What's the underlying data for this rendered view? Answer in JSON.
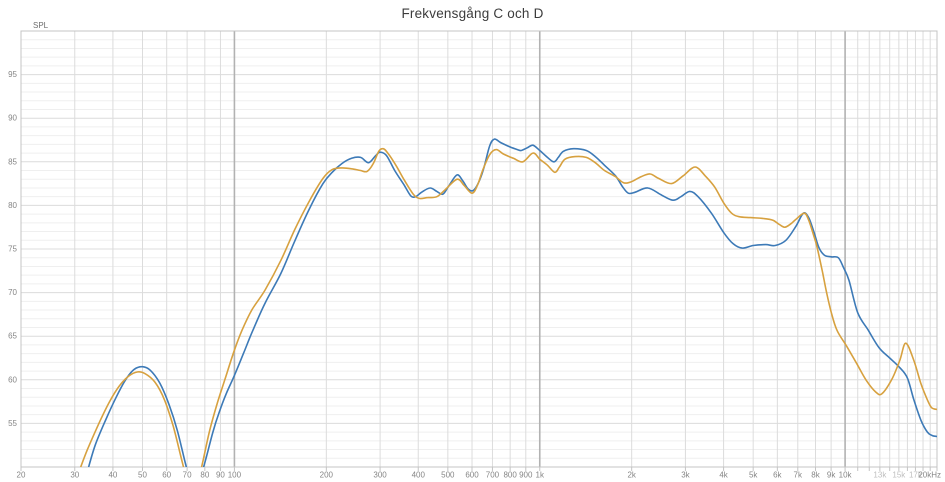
{
  "header": {
    "title": "Frekvensgång C och D"
  },
  "axes": {
    "spl_label": "SPL",
    "y_tick_labels": [
      "55",
      "60",
      "65",
      "70",
      "75",
      "80",
      "85",
      "90",
      "95"
    ],
    "x_ticks": [
      {
        "f": 20,
        "label": "20"
      },
      {
        "f": 30,
        "label": "30"
      },
      {
        "f": 40,
        "label": "40"
      },
      {
        "f": 50,
        "label": "50"
      },
      {
        "f": 60,
        "label": "60"
      },
      {
        "f": 70,
        "label": "70"
      },
      {
        "f": 80,
        "label": "80"
      },
      {
        "f": 90,
        "label": "90"
      },
      {
        "f": 100,
        "label": "100"
      },
      {
        "f": 200,
        "label": "200"
      },
      {
        "f": 300,
        "label": "300"
      },
      {
        "f": 400,
        "label": "400"
      },
      {
        "f": 500,
        "label": "500"
      },
      {
        "f": 600,
        "label": "600"
      },
      {
        "f": 700,
        "label": "700"
      },
      {
        "f": 800,
        "label": "800"
      },
      {
        "f": 900,
        "label": "900"
      },
      {
        "f": 1000,
        "label": "1k"
      },
      {
        "f": 2000,
        "label": "2k"
      },
      {
        "f": 3000,
        "label": "3k"
      },
      {
        "f": 4000,
        "label": "4k"
      },
      {
        "f": 5000,
        "label": "5k"
      },
      {
        "f": 6000,
        "label": "6k"
      },
      {
        "f": 7000,
        "label": "7k"
      },
      {
        "f": 8000,
        "label": "8k"
      },
      {
        "f": 9000,
        "label": "9k"
      },
      {
        "f": 10000,
        "label": "10k"
      },
      {
        "f": 13000,
        "label": "13k",
        "muted": true
      },
      {
        "f": 15000,
        "label": "15k",
        "muted": true
      },
      {
        "f": 17000,
        "label": "17k",
        "muted": true
      },
      {
        "f": 20000,
        "label": "20kHz",
        "anchor": "end"
      }
    ]
  },
  "style": {
    "grid_minor": "#efefef",
    "grid_major": "#dcdcdc",
    "grid_decade": "#b2b2b2",
    "border": "#c4c4c4",
    "tick": "#c4c4c4",
    "label_color": "#858585",
    "muted_label_color": "#bfbfbf",
    "spl_color": "#6e6e6e",
    "title_color": "#3c3c3c"
  },
  "chart_data": {
    "type": "line",
    "title": "Frekvensgång C och D",
    "x_scale": "log",
    "x_unit": "Hz",
    "x_range": [
      20,
      20000
    ],
    "ylabel": "SPL",
    "y_range": [
      50,
      100
    ],
    "y_major_step": 5,
    "y_minor_step": 1,
    "grid": true,
    "legend": "none",
    "series": [
      {
        "name": "C",
        "color": "#3d7ab7",
        "points": [
          [
            33,
            49.5
          ],
          [
            35,
            52.5
          ],
          [
            38,
            55.5
          ],
          [
            41,
            58
          ],
          [
            44,
            60
          ],
          [
            47,
            61.2
          ],
          [
            50,
            61.5
          ],
          [
            53,
            61.1
          ],
          [
            57,
            59.6
          ],
          [
            61,
            57.2
          ],
          [
            65,
            54.2
          ],
          [
            69,
            50.5
          ],
          [
            72,
            48.2
          ],
          [
            75,
            47.8
          ],
          [
            78,
            49.2
          ],
          [
            81,
            51.2
          ],
          [
            85,
            54
          ],
          [
            89,
            56.2
          ],
          [
            94,
            58.4
          ],
          [
            100,
            60.5
          ],
          [
            107,
            63
          ],
          [
            115,
            65.7
          ],
          [
            126,
            68.8
          ],
          [
            142,
            72.2
          ],
          [
            158,
            76
          ],
          [
            176,
            79.6
          ],
          [
            195,
            82.5
          ],
          [
            209,
            83.8
          ],
          [
            225,
            84.8
          ],
          [
            242,
            85.4
          ],
          [
            259,
            85.5
          ],
          [
            275,
            84.9
          ],
          [
            290,
            85.7
          ],
          [
            300,
            86.1
          ],
          [
            315,
            85.7
          ],
          [
            335,
            84
          ],
          [
            360,
            82.3
          ],
          [
            378,
            81.1
          ],
          [
            392,
            81
          ],
          [
            410,
            81.5
          ],
          [
            437,
            82
          ],
          [
            460,
            81.6
          ],
          [
            482,
            81.3
          ],
          [
            505,
            82.3
          ],
          [
            536,
            83.5
          ],
          [
            560,
            82.8
          ],
          [
            582,
            81.9
          ],
          [
            605,
            81.7
          ],
          [
            630,
            82.6
          ],
          [
            655,
            84.2
          ],
          [
            685,
            86.8
          ],
          [
            710,
            87.6
          ],
          [
            745,
            87.2
          ],
          [
            800,
            86.7
          ],
          [
            845,
            86.4
          ],
          [
            870,
            86.3
          ],
          [
            910,
            86.6
          ],
          [
            950,
            86.9
          ],
          [
            1000,
            86.3
          ],
          [
            1045,
            85.7
          ],
          [
            1110,
            85
          ],
          [
            1150,
            85.5
          ],
          [
            1195,
            86.2
          ],
          [
            1290,
            86.5
          ],
          [
            1420,
            86.3
          ],
          [
            1520,
            85.6
          ],
          [
            1630,
            84.6
          ],
          [
            1770,
            83.4
          ],
          [
            1870,
            82.1
          ],
          [
            1950,
            81.4
          ],
          [
            2050,
            81.5
          ],
          [
            2260,
            82
          ],
          [
            2500,
            81.2
          ],
          [
            2730,
            80.6
          ],
          [
            2900,
            81
          ],
          [
            3100,
            81.6
          ],
          [
            3300,
            81
          ],
          [
            3650,
            79.1
          ],
          [
            4000,
            76.9
          ],
          [
            4300,
            75.6
          ],
          [
            4600,
            75.1
          ],
          [
            5000,
            75.4
          ],
          [
            5500,
            75.5
          ],
          [
            5900,
            75.4
          ],
          [
            6400,
            76
          ],
          [
            6900,
            77.6
          ],
          [
            7300,
            79.1
          ],
          [
            7600,
            78.6
          ],
          [
            7900,
            77
          ],
          [
            8200,
            75.2
          ],
          [
            8550,
            74.3
          ],
          [
            9000,
            74.1
          ],
          [
            9500,
            74
          ],
          [
            9900,
            72.8
          ],
          [
            10300,
            71.4
          ],
          [
            11000,
            67.7
          ],
          [
            11900,
            65.7
          ],
          [
            12900,
            63.7
          ],
          [
            14000,
            62.5
          ],
          [
            15100,
            61.4
          ],
          [
            16000,
            60.2
          ],
          [
            16800,
            57.7
          ],
          [
            17700,
            55.4
          ],
          [
            18600,
            54
          ],
          [
            19300,
            53.6
          ],
          [
            20000,
            53.5
          ]
        ]
      },
      {
        "name": "D",
        "color": "#d7a13f",
        "points": [
          [
            31,
            49.5
          ],
          [
            33,
            52
          ],
          [
            36,
            55
          ],
          [
            39,
            57.5
          ],
          [
            42,
            59.3
          ],
          [
            45,
            60.4
          ],
          [
            48,
            60.9
          ],
          [
            51,
            60.7
          ],
          [
            55,
            59.7
          ],
          [
            59,
            57.7
          ],
          [
            63,
            54.7
          ],
          [
            67,
            51
          ],
          [
            70,
            48.5
          ],
          [
            73,
            47
          ],
          [
            76,
            48.3
          ],
          [
            79,
            50.8
          ],
          [
            83,
            54.2
          ],
          [
            88,
            57.4
          ],
          [
            93,
            60
          ],
          [
            100,
            63.4
          ],
          [
            106,
            65.7
          ],
          [
            114,
            68
          ],
          [
            126,
            70.3
          ],
          [
            142,
            73.7
          ],
          [
            158,
            77.3
          ],
          [
            176,
            80.5
          ],
          [
            195,
            83.1
          ],
          [
            209,
            84.1
          ],
          [
            225,
            84.3
          ],
          [
            242,
            84.2
          ],
          [
            259,
            84
          ],
          [
            272,
            83.9
          ],
          [
            285,
            84.8
          ],
          [
            297,
            86.2
          ],
          [
            307,
            86.5
          ],
          [
            318,
            86
          ],
          [
            338,
            84.6
          ],
          [
            360,
            82.9
          ],
          [
            385,
            81.3
          ],
          [
            403,
            80.8
          ],
          [
            430,
            80.9
          ],
          [
            460,
            81
          ],
          [
            490,
            81.8
          ],
          [
            536,
            83
          ],
          [
            565,
            82.3
          ],
          [
            600,
            81.4
          ],
          [
            625,
            82.3
          ],
          [
            650,
            84
          ],
          [
            685,
            85.8
          ],
          [
            720,
            86.4
          ],
          [
            760,
            85.9
          ],
          [
            820,
            85.4
          ],
          [
            880,
            85
          ],
          [
            950,
            86
          ],
          [
            1000,
            85.3
          ],
          [
            1060,
            84.6
          ],
          [
            1120,
            83.8
          ],
          [
            1160,
            84.4
          ],
          [
            1210,
            85.3
          ],
          [
            1305,
            85.6
          ],
          [
            1420,
            85.5
          ],
          [
            1520,
            84.9
          ],
          [
            1630,
            84
          ],
          [
            1770,
            83.3
          ],
          [
            1880,
            82.6
          ],
          [
            1990,
            82.7
          ],
          [
            2150,
            83.3
          ],
          [
            2300,
            83.6
          ],
          [
            2450,
            83.1
          ],
          [
            2700,
            82.5
          ],
          [
            2950,
            83.4
          ],
          [
            3230,
            84.4
          ],
          [
            3500,
            83.3
          ],
          [
            3740,
            82.1
          ],
          [
            4000,
            80.3
          ],
          [
            4250,
            79.1
          ],
          [
            4500,
            78.7
          ],
          [
            4900,
            78.6
          ],
          [
            5400,
            78.5
          ],
          [
            5800,
            78.3
          ],
          [
            6100,
            77.8
          ],
          [
            6350,
            77.5
          ],
          [
            6650,
            77.9
          ],
          [
            6900,
            78.4
          ],
          [
            7350,
            79.1
          ],
          [
            7600,
            78.3
          ],
          [
            7900,
            76.5
          ],
          [
            8100,
            75.2
          ],
          [
            8450,
            72.2
          ],
          [
            8700,
            70
          ],
          [
            9000,
            67.8
          ],
          [
            9400,
            65.7
          ],
          [
            10100,
            63.9
          ],
          [
            10900,
            61.9
          ],
          [
            11700,
            60
          ],
          [
            12600,
            58.6
          ],
          [
            13200,
            58.4
          ],
          [
            14200,
            60
          ],
          [
            15100,
            62.2
          ],
          [
            15800,
            64.2
          ],
          [
            16800,
            62.2
          ],
          [
            17700,
            59.6
          ],
          [
            18600,
            57.7
          ],
          [
            19200,
            56.8
          ],
          [
            20000,
            56.6
          ]
        ]
      }
    ]
  }
}
